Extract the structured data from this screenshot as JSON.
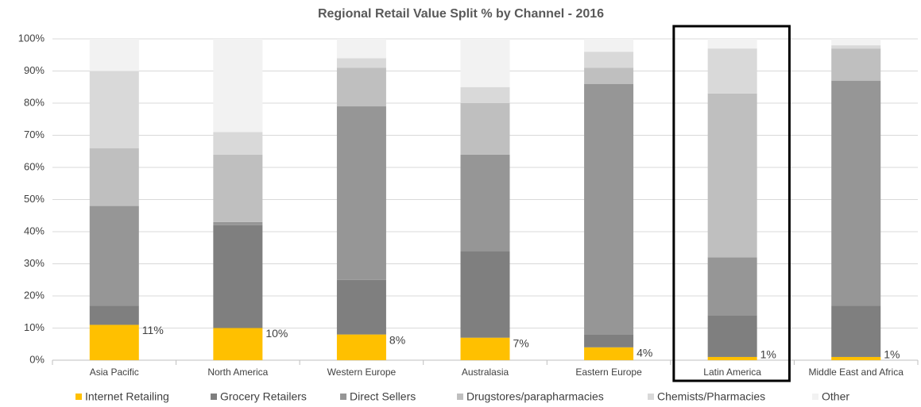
{
  "chart_data": {
    "type": "stacked_bar",
    "title": "Regional Retail Value Split % by Channel - 2016",
    "categories": [
      "Asia Pacific",
      "North America",
      "Western Europe",
      "Australasia",
      "Eastern Europe",
      "Latin America",
      "Middle East and Africa"
    ],
    "series": [
      {
        "name": "Internet Retailing",
        "color": "#ffc000",
        "values": [
          11,
          10,
          8,
          7,
          4,
          1,
          1
        ],
        "value_labels": [
          "11%",
          "10%",
          "8%",
          "7%",
          "4%",
          "1%",
          "1%"
        ]
      },
      {
        "name": "Grocery Retailers",
        "color": "#7f7f7f",
        "values": [
          6,
          32,
          17,
          27,
          4,
          13,
          16
        ]
      },
      {
        "name": "Direct Sellers",
        "color": "#969696",
        "values": [
          31,
          1,
          54,
          30,
          78,
          18,
          70
        ]
      },
      {
        "name": "Drugstores/parapharmacies",
        "color": "#bfbfbf",
        "values": [
          18,
          21,
          12,
          16,
          5,
          51,
          10
        ]
      },
      {
        "name": "Chemists/Pharmacies",
        "color": "#d9d9d9",
        "values": [
          24,
          7,
          3,
          5,
          5,
          14,
          1
        ]
      },
      {
        "name": "Other",
        "color": "#f2f2f2",
        "values": [
          10,
          29,
          6,
          15,
          4,
          3,
          2
        ]
      }
    ],
    "ylim": [
      0,
      100
    ],
    "yticks": [
      {
        "value": 0,
        "label": "0%"
      },
      {
        "value": 10,
        "label": "10%"
      },
      {
        "value": 20,
        "label": "20%"
      },
      {
        "value": 30,
        "label": "30%"
      },
      {
        "value": 40,
        "label": "40%"
      },
      {
        "value": 50,
        "label": "50%"
      },
      {
        "value": 60,
        "label": "60%"
      },
      {
        "value": 70,
        "label": "70%"
      },
      {
        "value": 80,
        "label": "80%"
      },
      {
        "value": 90,
        "label": "90%"
      },
      {
        "value": 100,
        "label": "100%"
      }
    ],
    "grid": true,
    "legend": "bottom"
  }
}
